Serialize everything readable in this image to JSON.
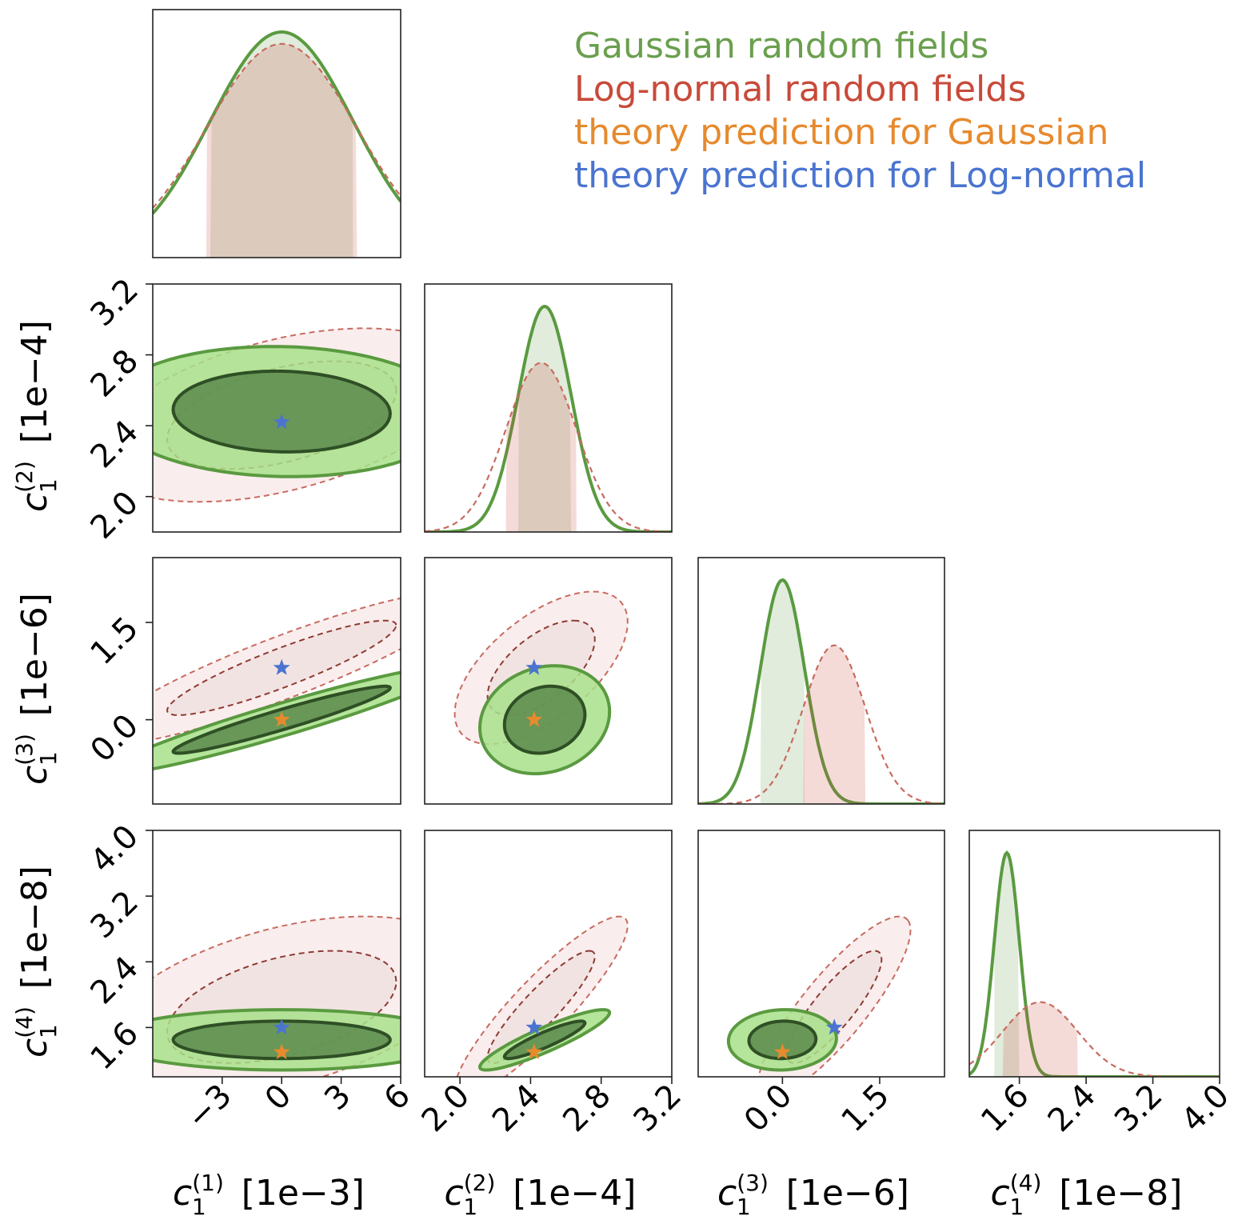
{
  "chart_data": {
    "type": "corner",
    "parameters": [
      {
        "name": "c1_1",
        "symbol": "c",
        "sub": "1",
        "sup": "(1)",
        "unit": "[1e−3]",
        "range": [
          -6.5,
          6
        ],
        "ticks": [
          {
            "v": -3,
            "label": "−3"
          },
          {
            "v": 0,
            "label": "0"
          },
          {
            "v": 3,
            "label": "3"
          },
          {
            "v": 6,
            "label": "6"
          }
        ]
      },
      {
        "name": "c1_2",
        "symbol": "c",
        "sub": "1",
        "sup": "(2)",
        "unit": "[1e−4]",
        "range": [
          1.8,
          3.2
        ],
        "ticks": [
          {
            "v": 2.0,
            "label": "2.0"
          },
          {
            "v": 2.4,
            "label": "2.4"
          },
          {
            "v": 2.8,
            "label": "2.8"
          },
          {
            "v": 3.2,
            "label": "3.2"
          }
        ]
      },
      {
        "name": "c1_3",
        "symbol": "c",
        "sub": "1",
        "sup": "(3)",
        "unit": "[1e−6]",
        "range": [
          -1.3,
          2.5
        ],
        "ticks": [
          {
            "v": 0.0,
            "label": "0.0"
          },
          {
            "v": 1.5,
            "label": "1.5"
          }
        ]
      },
      {
        "name": "c1_4",
        "symbol": "c",
        "sub": "1",
        "sup": "(4)",
        "unit": "[1e−8]",
        "range": [
          1.0,
          4.0
        ],
        "ticks": [
          {
            "v": 1.6,
            "label": "1.6"
          },
          {
            "v": 2.4,
            "label": "2.4"
          },
          {
            "v": 3.2,
            "label": "3.2"
          },
          {
            "v": 4.0,
            "label": "4.0"
          }
        ]
      }
    ],
    "series": [
      {
        "name": "Gaussian random fields",
        "color": "#6a9f4e",
        "fill_outer": "#a8e08a",
        "fill_inner": "#5b8a4c",
        "edge_outer": "#5a9a40",
        "edge_inner": "#2f4f25",
        "style": "solid",
        "mean": [
          0.0,
          2.48,
          0.0,
          1.45
        ],
        "sigma": [
          3.6,
          0.15,
          0.34,
          0.15
        ],
        "corr": [
          [
            1,
            -0.05,
            0.95,
            0.0
          ],
          [
            -0.05,
            1,
            0.15,
            0.9
          ],
          [
            0.95,
            0.15,
            1,
            0.05
          ],
          [
            0.0,
            0.9,
            0.05,
            1
          ]
        ]
      },
      {
        "name": "Log-normal random fields",
        "color": "#c84a3a",
        "fill_outer": "#f6dede",
        "fill_inner": "#eddcdc",
        "edge_outer": "#c86b60",
        "edge_inner": "#8e3b32",
        "style": "dashed",
        "mean": [
          0.0,
          2.46,
          0.8,
          1.85
        ],
        "sigma": [
          3.8,
          0.2,
          0.48,
          0.45
        ],
        "corr": [
          [
            1,
            0.45,
            0.9,
            0.45
          ],
          [
            0.45,
            1,
            0.6,
            0.9
          ],
          [
            0.9,
            0.6,
            1,
            0.85
          ],
          [
            0.45,
            0.9,
            0.85,
            1
          ]
        ]
      }
    ],
    "markers": [
      {
        "name": "theory prediction for Gaussian",
        "color": "#e68a2e",
        "values": [
          0.0,
          2.42,
          0.0,
          1.3
        ]
      },
      {
        "name": "theory prediction for Log-normal",
        "color": "#4a74d0",
        "values": [
          0.0,
          2.42,
          0.8,
          1.6
        ]
      }
    ],
    "legend_location": "top-right"
  }
}
